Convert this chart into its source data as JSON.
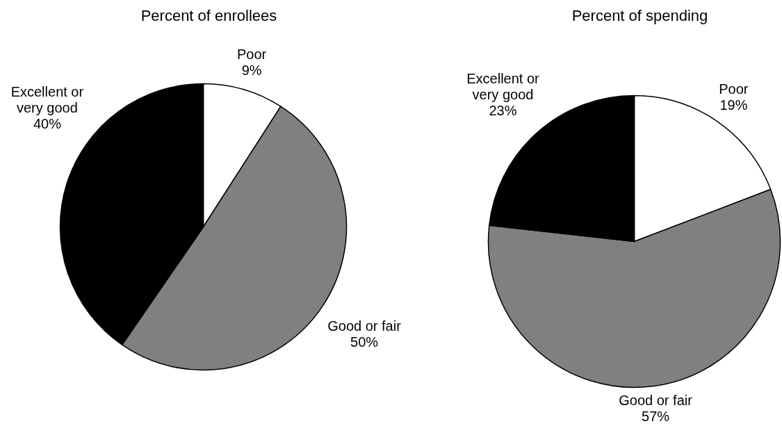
{
  "chart_data": [
    {
      "type": "pie",
      "title": "Percent of enrollees",
      "categories": [
        "Poor",
        "Good or fair",
        "Excellent or very good"
      ],
      "values": [
        9,
        50,
        40
      ],
      "value_labels": [
        "9%",
        "50%",
        "40%"
      ],
      "colors": [
        "#ffffff",
        "#808080",
        "#000000"
      ]
    },
    {
      "type": "pie",
      "title": "Percent of spending",
      "categories": [
        "Poor",
        "Good or fair",
        "Excellent or very good"
      ],
      "values": [
        19,
        57,
        23
      ],
      "value_labels": [
        "19%",
        "57%",
        "23%"
      ],
      "colors": [
        "#ffffff",
        "#808080",
        "#000000"
      ]
    }
  ]
}
